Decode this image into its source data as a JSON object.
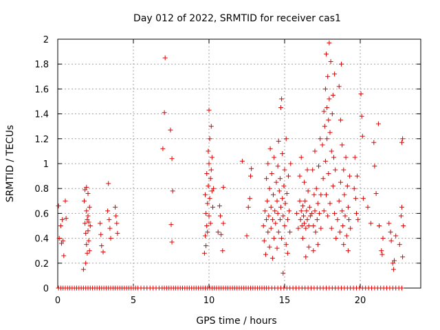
{
  "chart_data": {
    "type": "scatter",
    "title": "Day 012 of 2022, SRMTID for receiver cas1",
    "xlabel": "GPS time / hours",
    "ylabel": "SRMTID / TECUs",
    "xlim": [
      0,
      24
    ],
    "ylim": [
      0,
      2
    ],
    "xticks": [
      0,
      5,
      10,
      15,
      20
    ],
    "yticks": [
      0,
      0.2,
      0.4,
      0.6,
      0.8,
      1,
      1.2,
      1.4,
      1.6,
      1.8,
      2
    ],
    "xtick_labels": [
      "0",
      "5",
      "10",
      "15",
      "20"
    ],
    "ytick_labels": [
      "0",
      "0.2",
      "0.4",
      "0.6",
      "0.8",
      "1",
      "1.2",
      "1.4",
      "1.6",
      "1.8",
      "2"
    ],
    "grid": true,
    "marker": "+",
    "color": "#dd0000",
    "series": [
      {
        "name": "SRMTID",
        "points": [
          [
            0.05,
            0.66
          ],
          [
            0.1,
            0.4
          ],
          [
            0.2,
            0.5
          ],
          [
            0.25,
            0.36
          ],
          [
            0.3,
            0.55
          ],
          [
            0.35,
            0.38
          ],
          [
            0.4,
            0.26
          ],
          [
            0.5,
            0.7
          ],
          [
            0.55,
            0.56
          ],
          [
            1.7,
            0.15
          ],
          [
            1.75,
            0.7
          ],
          [
            1.8,
            0.79
          ],
          [
            1.8,
            0.52
          ],
          [
            1.85,
            0.44
          ],
          [
            1.85,
            0.2
          ],
          [
            1.9,
            0.81
          ],
          [
            1.9,
            0.62
          ],
          [
            1.9,
            0.35
          ],
          [
            1.95,
            0.55
          ],
          [
            1.95,
            0.28
          ],
          [
            2.0,
            0.76
          ],
          [
            2.0,
            0.58
          ],
          [
            2.0,
            0.46
          ],
          [
            2.05,
            0.53
          ],
          [
            2.05,
            0.38
          ],
          [
            2.1,
            0.65
          ],
          [
            2.1,
            0.3
          ],
          [
            2.15,
            0.5
          ],
          [
            2.8,
            0.52
          ],
          [
            2.85,
            0.43
          ],
          [
            2.9,
            0.34
          ],
          [
            3.0,
            0.29
          ],
          [
            3.3,
            0.62
          ],
          [
            3.35,
            0.84
          ],
          [
            3.4,
            0.55
          ],
          [
            3.45,
            0.48
          ],
          [
            3.5,
            0.4
          ],
          [
            3.8,
            0.65
          ],
          [
            3.85,
            0.58
          ],
          [
            3.9,
            0.52
          ],
          [
            3.95,
            0.44
          ],
          [
            6.95,
            1.12
          ],
          [
            7.05,
            1.41
          ],
          [
            7.1,
            1.85
          ],
          [
            7.45,
            1.27
          ],
          [
            7.5,
            0.51
          ],
          [
            7.55,
            0.37
          ],
          [
            7.6,
            0.78
          ],
          [
            7.55,
            1.04
          ],
          [
            9.7,
            0.28
          ],
          [
            9.75,
            0.42
          ],
          [
            9.75,
            0.75
          ],
          [
            9.8,
            0.6
          ],
          [
            9.8,
            0.34
          ],
          [
            9.85,
            0.5
          ],
          [
            9.85,
            0.92
          ],
          [
            9.9,
            0.68
          ],
          [
            9.9,
            0.45
          ],
          [
            9.95,
            1.1
          ],
          [
            9.95,
            0.82
          ],
          [
            10.0,
            0.58
          ],
          [
            10.0,
            1.0
          ],
          [
            10.0,
            1.43
          ],
          [
            10.05,
            0.72
          ],
          [
            10.05,
            1.2
          ],
          [
            10.1,
            0.88
          ],
          [
            10.1,
            0.52
          ],
          [
            10.15,
            1.3
          ],
          [
            10.15,
            0.95
          ],
          [
            10.2,
            0.78
          ],
          [
            10.2,
            1.05
          ],
          [
            10.25,
            0.65
          ],
          [
            10.3,
            0.8
          ],
          [
            10.6,
            0.45
          ],
          [
            10.7,
            0.66
          ],
          [
            10.75,
            0.58
          ],
          [
            10.8,
            0.43
          ],
          [
            10.9,
            0.3
          ],
          [
            10.95,
            0.52
          ],
          [
            10.95,
            0.81
          ],
          [
            12.2,
            1.02
          ],
          [
            12.5,
            0.42
          ],
          [
            12.6,
            0.65
          ],
          [
            12.7,
            0.72
          ],
          [
            12.75,
            0.9
          ],
          [
            12.8,
            0.96
          ],
          [
            13.6,
            0.5
          ],
          [
            13.65,
            0.38
          ],
          [
            13.7,
            0.62
          ],
          [
            13.75,
            0.27
          ],
          [
            13.8,
            0.55
          ],
          [
            13.8,
            0.88
          ],
          [
            13.85,
            0.7
          ],
          [
            13.9,
            0.45
          ],
          [
            13.9,
            1.0
          ],
          [
            13.95,
            0.58
          ],
          [
            14.0,
            0.33
          ],
          [
            14.0,
            0.8
          ],
          [
            14.05,
            1.12
          ],
          [
            14.1,
            0.65
          ],
          [
            14.1,
            0.48
          ],
          [
            14.15,
            0.92
          ],
          [
            14.2,
            0.55
          ],
          [
            14.2,
            0.24
          ],
          [
            14.25,
            0.75
          ],
          [
            14.3,
            0.4
          ],
          [
            14.3,
            1.05
          ],
          [
            14.35,
            0.62
          ],
          [
            14.4,
            0.52
          ],
          [
            14.45,
            0.85
          ],
          [
            14.5,
            0.7
          ],
          [
            14.5,
            0.32
          ],
          [
            14.55,
            0.6
          ],
          [
            14.55,
            0.98
          ],
          [
            14.6,
            0.45
          ],
          [
            14.6,
            1.18
          ],
          [
            14.65,
            0.78
          ],
          [
            14.7,
            0.55
          ],
          [
            14.7,
            0.88
          ],
          [
            14.75,
            0.65
          ],
          [
            14.75,
            1.45
          ],
          [
            14.8,
            1.52
          ],
          [
            14.8,
            0.4
          ],
          [
            14.85,
            0.72
          ],
          [
            14.85,
            1.08
          ],
          [
            14.9,
            0.58
          ],
          [
            14.9,
            0.12
          ],
          [
            14.95,
            0.82
          ],
          [
            15.0,
            0.5
          ],
          [
            15.0,
            0.95
          ],
          [
            15.05,
            0.68
          ],
          [
            15.1,
            1.2
          ],
          [
            15.1,
            0.35
          ],
          [
            15.15,
            0.76
          ],
          [
            15.2,
            0.55
          ],
          [
            15.2,
            0.28
          ],
          [
            15.25,
            0.9
          ],
          [
            15.3,
            0.62
          ],
          [
            15.35,
            0.45
          ],
          [
            15.4,
            1.0
          ],
          [
            15.8,
            0.6
          ],
          [
            15.9,
            0.48
          ],
          [
            16.0,
            0.7
          ],
          [
            16.0,
            0.9
          ],
          [
            16.05,
            0.55
          ],
          [
            16.1,
            0.62
          ],
          [
            16.1,
            1.05
          ],
          [
            16.15,
            0.5
          ],
          [
            16.2,
            0.66
          ],
          [
            16.2,
            0.4
          ],
          [
            16.25,
            0.58
          ],
          [
            16.3,
            0.85
          ],
          [
            16.3,
            0.52
          ],
          [
            16.35,
            0.7
          ],
          [
            16.4,
            0.48
          ],
          [
            16.4,
            0.25
          ],
          [
            16.45,
            0.62
          ],
          [
            16.5,
            0.55
          ],
          [
            16.5,
            0.95
          ],
          [
            16.55,
            0.78
          ],
          [
            16.6,
            0.5
          ],
          [
            16.6,
            0.33
          ],
          [
            16.65,
            0.65
          ],
          [
            16.7,
            0.58
          ],
          [
            16.8,
            0.6
          ],
          [
            16.85,
            0.95
          ],
          [
            16.9,
            0.5
          ],
          [
            16.9,
            0.3
          ],
          [
            16.95,
            0.75
          ],
          [
            17.0,
            0.62
          ],
          [
            17.0,
            1.1
          ],
          [
            17.05,
            0.45
          ],
          [
            17.1,
            0.8
          ],
          [
            17.15,
            0.55
          ],
          [
            17.2,
            0.35
          ],
          [
            17.2,
            0.68
          ],
          [
            17.25,
            0.98
          ],
          [
            17.3,
            0.6
          ],
          [
            17.35,
            1.2
          ],
          [
            17.4,
            0.75
          ],
          [
            17.4,
            0.48
          ],
          [
            17.5,
            1.15
          ],
          [
            17.55,
            0.88
          ],
          [
            17.6,
            1.42
          ],
          [
            17.6,
            0.62
          ],
          [
            17.65,
            1.3
          ],
          [
            17.7,
            1.6
          ],
          [
            17.7,
            1.02
          ],
          [
            17.75,
            1.88
          ],
          [
            17.75,
            0.75
          ],
          [
            17.8,
            1.45
          ],
          [
            17.8,
            1.2
          ],
          [
            17.85,
            0.58
          ],
          [
            17.85,
            1.7
          ],
          [
            17.9,
            1.35
          ],
          [
            17.9,
            0.92
          ],
          [
            17.95,
            1.97
          ],
          [
            17.95,
            1.52
          ],
          [
            18.0,
            1.25
          ],
          [
            18.0,
            0.68
          ],
          [
            18.05,
            1.82
          ],
          [
            18.1,
            1.1
          ],
          [
            18.1,
            0.48
          ],
          [
            18.15,
            1.4
          ],
          [
            18.2,
            0.82
          ],
          [
            18.2,
            1.55
          ],
          [
            18.25,
            1.05
          ],
          [
            18.3,
            0.6
          ],
          [
            18.3,
            1.72
          ],
          [
            18.35,
            0.95
          ],
          [
            18.4,
            0.4
          ],
          [
            18.5,
            0.55
          ],
          [
            18.6,
            0.7
          ],
          [
            18.6,
            1.62
          ],
          [
            18.65,
            0.45
          ],
          [
            18.7,
            1.35
          ],
          [
            18.7,
            0.85
          ],
          [
            18.75,
            1.8
          ],
          [
            18.8,
            0.62
          ],
          [
            18.8,
            1.15
          ],
          [
            18.85,
            0.5
          ],
          [
            18.9,
            0.95
          ],
          [
            18.9,
            0.35
          ],
          [
            18.95,
            0.75
          ],
          [
            19.0,
            0.58
          ],
          [
            19.05,
            1.05
          ],
          [
            19.1,
            0.42
          ],
          [
            19.15,
            0.82
          ],
          [
            19.2,
            0.65
          ],
          [
            19.2,
            0.3
          ],
          [
            19.25,
            0.55
          ],
          [
            19.3,
            0.9
          ],
          [
            19.35,
            0.48
          ],
          [
            19.6,
            0.8
          ],
          [
            19.65,
            1.05
          ],
          [
            19.7,
            0.72
          ],
          [
            19.75,
            0.6
          ],
          [
            19.8,
            0.9
          ],
          [
            19.85,
            0.55
          ],
          [
            20.05,
            1.56
          ],
          [
            20.1,
            1.38
          ],
          [
            20.15,
            1.22
          ],
          [
            20.2,
            0.72
          ],
          [
            20.5,
            0.65
          ],
          [
            20.7,
            0.52
          ],
          [
            20.9,
            1.17
          ],
          [
            20.95,
            0.98
          ],
          [
            21.05,
            0.76
          ],
          [
            21.2,
            1.32
          ],
          [
            21.25,
            0.5
          ],
          [
            21.4,
            0.3
          ],
          [
            21.45,
            0.27
          ],
          [
            21.5,
            0.4
          ],
          [
            21.9,
            0.52
          ],
          [
            22.0,
            0.45
          ],
          [
            22.05,
            0.38
          ],
          [
            22.15,
            0.2
          ],
          [
            22.2,
            0.15
          ],
          [
            22.25,
            0.22
          ],
          [
            22.35,
            0.42
          ],
          [
            22.6,
            0.35
          ],
          [
            22.7,
            0.58
          ],
          [
            22.75,
            0.65
          ],
          [
            22.75,
            1.17
          ],
          [
            22.8,
            1.2
          ],
          [
            22.8,
            0.25
          ],
          [
            22.85,
            0.5
          ]
        ],
        "zero_x": [
          0.05,
          0.2,
          0.35,
          0.5,
          0.65,
          0.8,
          0.95,
          1.1,
          1.25,
          1.4,
          1.55,
          1.7,
          1.85,
          2.0,
          2.15,
          2.3,
          2.45,
          2.6,
          2.75,
          2.9,
          3.05,
          3.2,
          3.35,
          3.5,
          3.65,
          3.8,
          3.95,
          4.1,
          4.25,
          4.4,
          4.55,
          4.7,
          4.85,
          5.0,
          5.15,
          5.3,
          5.5,
          5.7,
          5.9,
          6.1,
          6.3,
          6.5,
          6.7,
          6.9,
          7.05,
          7.2,
          7.35,
          7.5,
          7.65,
          7.8,
          7.95,
          8.1,
          8.25,
          8.4,
          8.55,
          8.7,
          8.85,
          9.0,
          9.15,
          9.3,
          9.45,
          9.6,
          9.75,
          9.9,
          10.05,
          10.2,
          10.35,
          10.5,
          10.65,
          10.8,
          10.95,
          11.1,
          11.25,
          11.4,
          11.55,
          11.7,
          11.85,
          12.0,
          12.15,
          12.3,
          12.45,
          12.6,
          12.75,
          12.9,
          13.05,
          13.2,
          13.35,
          13.5,
          13.65,
          13.8,
          13.95,
          14.15,
          14.35,
          14.55,
          14.75,
          14.95,
          15.15,
          15.35,
          15.55,
          15.75,
          15.95,
          16.15,
          16.35,
          16.55,
          16.75,
          16.95,
          17.15,
          17.35,
          17.55,
          17.75,
          17.95,
          18.15,
          18.35,
          18.55,
          18.75,
          18.95,
          19.15,
          19.35,
          19.55,
          19.75,
          19.95,
          20.15,
          20.35,
          20.55,
          20.75,
          20.95,
          21.15,
          21.35,
          21.55,
          21.75,
          21.95,
          22.15,
          22.35,
          22.55,
          22.75
        ]
      }
    ]
  }
}
